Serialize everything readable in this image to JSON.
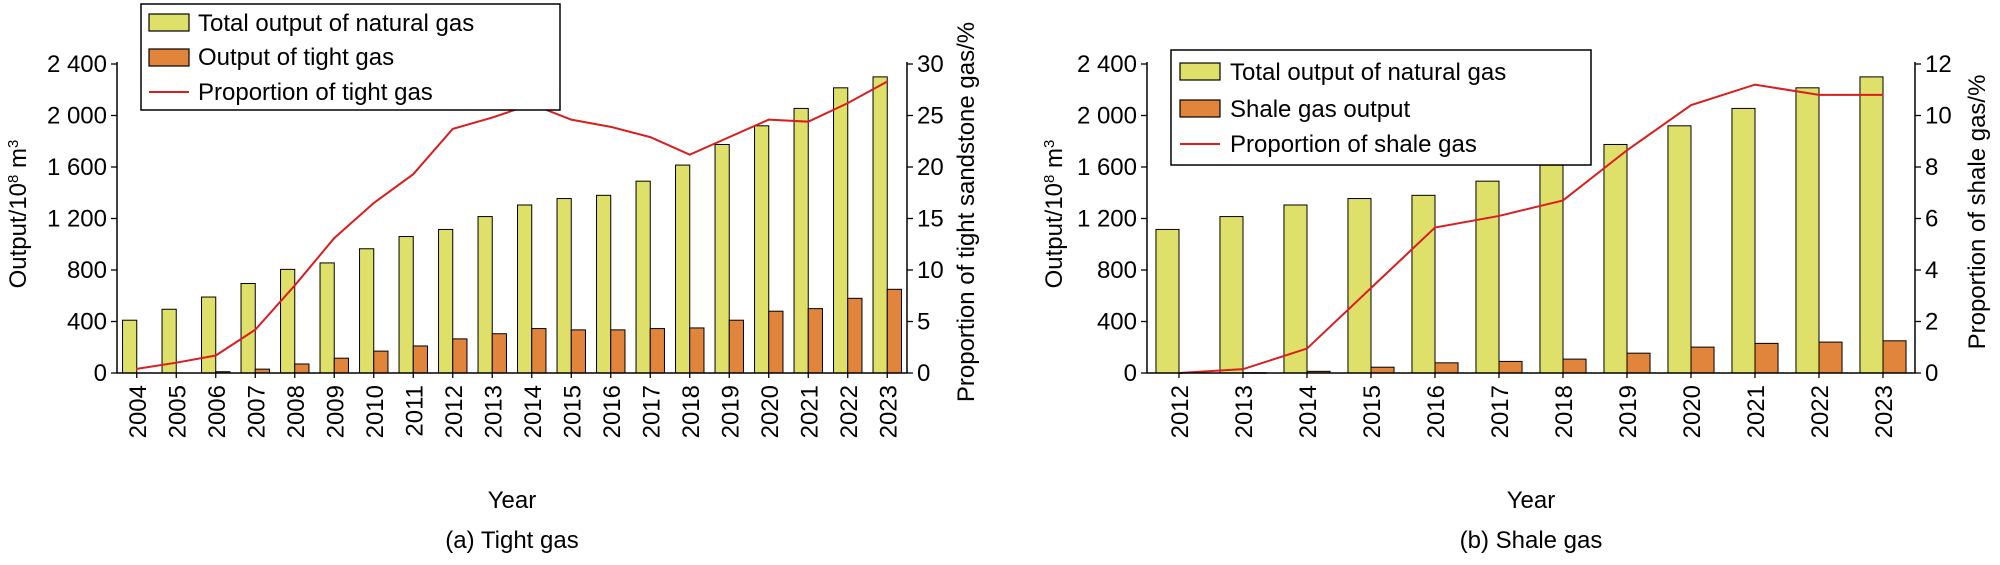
{
  "charts": [
    {
      "panel_id": "a",
      "caption": "(a) Tight gas",
      "xlabel": "Year",
      "ylabel_left_main": "Output/10",
      "ylabel_left_sup": "8",
      "ylabel_left_unit": " m",
      "ylabel_left_unit_sup": "3",
      "ylabel_right": "Proportion of tight sandstone gas/%"
    },
    {
      "panel_id": "b",
      "caption": "(b) Shale gas",
      "xlabel": "Year",
      "ylabel_left_main": "Output/10",
      "ylabel_left_sup": "8",
      "ylabel_left_unit": " m",
      "ylabel_left_unit_sup": "3",
      "ylabel_right": "Proportion of shale gas/%"
    }
  ],
  "colors": {
    "total_bar": "#dfe06a",
    "component_bar": "#e2853c",
    "line": "#d81e1e",
    "axis": "#000000"
  },
  "chart_data": [
    {
      "type": "bar",
      "title": "(a) Tight gas",
      "xlabel": "Year",
      "ylabel": "Output/10^8 m^3",
      "y2label": "Proportion of tight sandstone gas/%",
      "categories": [
        "2004",
        "2005",
        "2006",
        "2007",
        "2008",
        "2009",
        "2010",
        "2011",
        "2012",
        "2013",
        "2014",
        "2015",
        "2016",
        "2017",
        "2018",
        "2019",
        "2020",
        "2021",
        "2022",
        "2023"
      ],
      "ylim": [
        0,
        2400
      ],
      "yticks": [
        0,
        400,
        800,
        1200,
        1600,
        2000,
        2400
      ],
      "ytick_labels": [
        "0",
        "400",
        "800",
        "1 200",
        "1 600",
        "2 000",
        "2 400"
      ],
      "y2lim": [
        0,
        30
      ],
      "y2ticks": [
        0,
        5,
        10,
        15,
        20,
        25,
        30
      ],
      "legend_position": "top-left",
      "series": [
        {
          "name": "Total output of natural gas",
          "kind": "bar",
          "values": [
            410,
            495,
            590,
            695,
            805,
            855,
            965,
            1060,
            1115,
            1215,
            1305,
            1355,
            1380,
            1490,
            1615,
            1775,
            1920,
            2055,
            2215,
            2300
          ]
        },
        {
          "name": "Output of tight gas",
          "kind": "bar",
          "values": [
            0,
            0,
            10,
            30,
            70,
            115,
            170,
            210,
            265,
            305,
            345,
            335,
            335,
            345,
            350,
            410,
            480,
            500,
            580,
            650
          ]
        },
        {
          "name": "Proportion of tight gas",
          "kind": "line",
          "axis": "right",
          "values": [
            0.4,
            1.0,
            1.7,
            4.2,
            8.5,
            13.1,
            16.5,
            19.3,
            23.7,
            24.8,
            26.1,
            24.6,
            23.9,
            22.9,
            21.2,
            22.9,
            24.6,
            24.4,
            26.2,
            28.3
          ]
        }
      ]
    },
    {
      "type": "bar",
      "title": "(b) Shale gas",
      "xlabel": "Year",
      "ylabel": "Output/10^8 m^3",
      "y2label": "Proportion of shale gas/%",
      "categories": [
        "2012",
        "2013",
        "2014",
        "2015",
        "2016",
        "2017",
        "2018",
        "2019",
        "2020",
        "2021",
        "2022",
        "2023"
      ],
      "ylim": [
        0,
        2400
      ],
      "yticks": [
        0,
        400,
        800,
        1200,
        1600,
        2000,
        2400
      ],
      "ytick_labels": [
        "0",
        "400",
        "800",
        "1 200",
        "1 600",
        "2 000",
        "2 400"
      ],
      "y2lim": [
        0,
        12
      ],
      "y2ticks": [
        0,
        2,
        4,
        6,
        8,
        10,
        12
      ],
      "legend_position": "top-left",
      "series": [
        {
          "name": "Total output of natural gas",
          "kind": "bar",
          "values": [
            1115,
            1215,
            1305,
            1355,
            1380,
            1490,
            1615,
            1775,
            1920,
            2055,
            2215,
            2300
          ]
        },
        {
          "name": "Shale gas output",
          "kind": "bar",
          "values": [
            0,
            2,
            13,
            45,
            79,
            90,
            108,
            154,
            201,
            230,
            240,
            250
          ]
        },
        {
          "name": "Proportion of shale gas",
          "kind": "line",
          "axis": "right",
          "values": [
            0.0,
            0.15,
            0.95,
            3.3,
            5.65,
            6.1,
            6.7,
            8.65,
            10.4,
            11.2,
            10.8,
            10.8
          ]
        }
      ]
    }
  ]
}
